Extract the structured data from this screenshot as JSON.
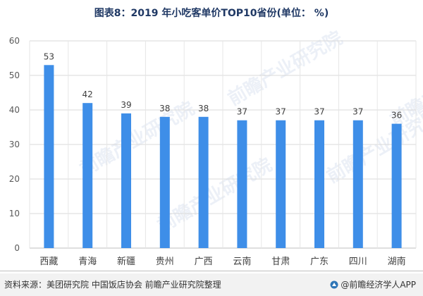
{
  "header": {
    "title": "图表8：2019 年小吃客单价TOP10省份(单位： %)"
  },
  "chart_data": {
    "type": "bar",
    "title": "图表8：2019 年小吃客单价TOP10省份(单位： %)",
    "categories": [
      "西藏",
      "青海",
      "新疆",
      "贵州",
      "广西",
      "云南",
      "甘肃",
      "广东",
      "四川",
      "湖南"
    ],
    "values": [
      53,
      42,
      39,
      38,
      38,
      37,
      37,
      37,
      37,
      36
    ],
    "ylim": [
      0,
      60
    ],
    "yticks": [
      0,
      10,
      20,
      30,
      40,
      50,
      60
    ],
    "grid": true,
    "xlabel": "",
    "ylabel": "",
    "bar_color": "#3e8ee8"
  },
  "footer": {
    "source": "资料来源：美团研究院 中国饭店协会 前瞻产业研究院整理",
    "brand": "@前瞻经济学人APP"
  },
  "watermark": {
    "text": "前瞻产业研究院"
  },
  "colors": {
    "title": "#1f3864",
    "bar": "#3e8ee8",
    "grid": "#d9d9d9"
  }
}
